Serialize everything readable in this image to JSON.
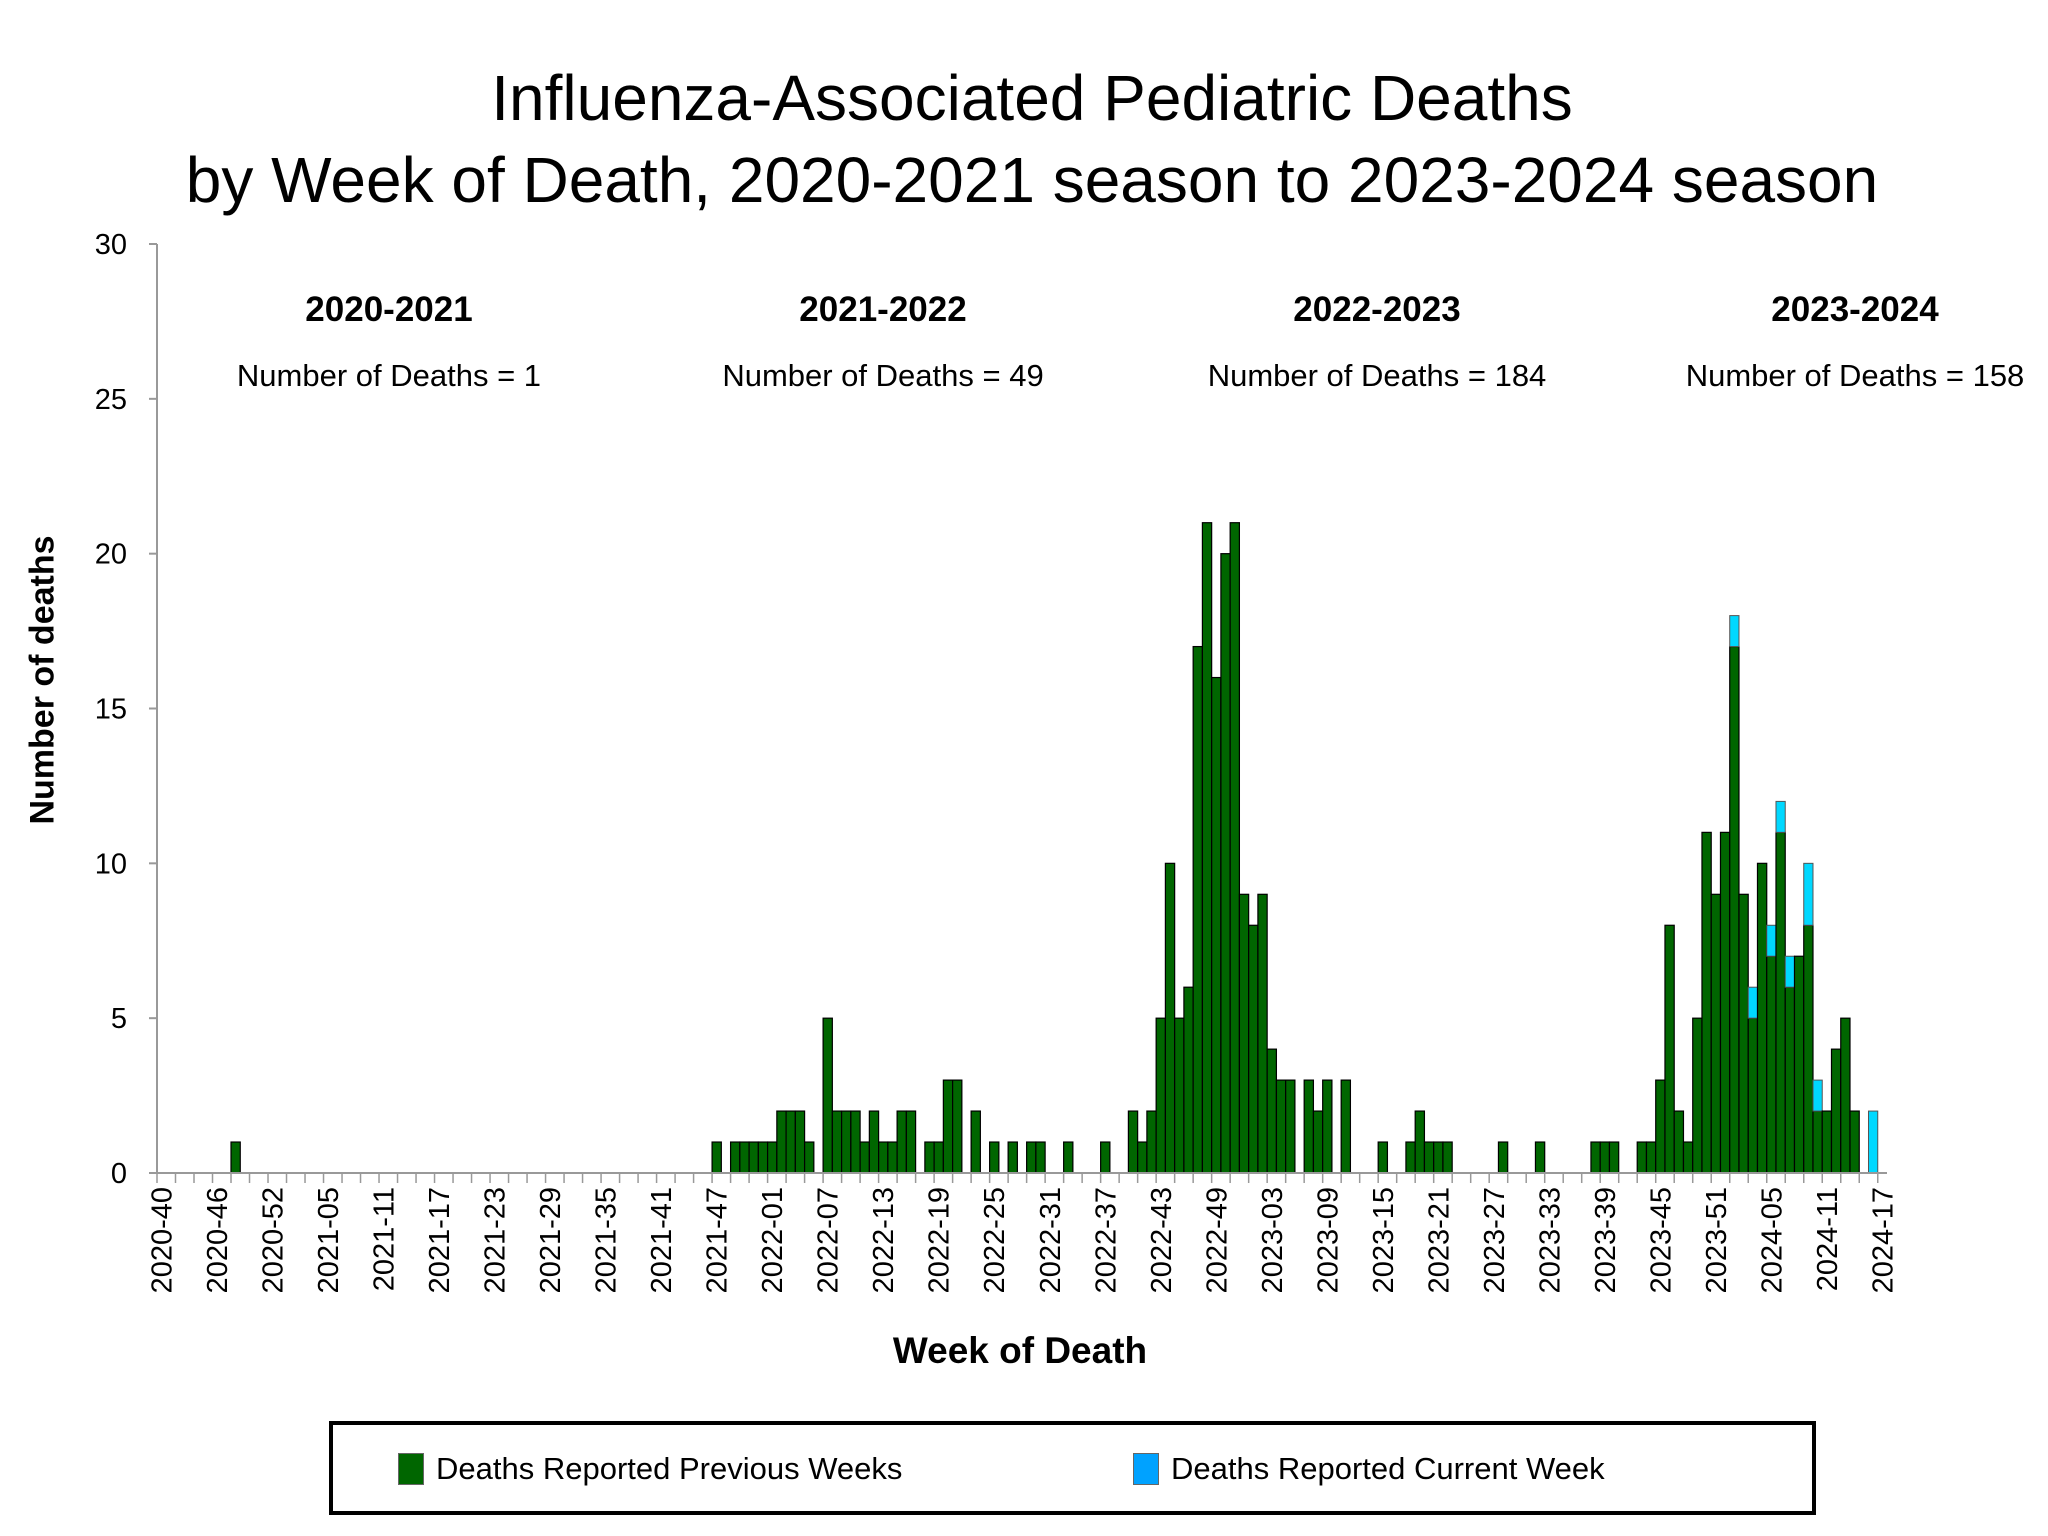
{
  "chart_data": {
    "type": "bar",
    "stacked": true,
    "title": [
      "Influenza-Associated Pediatric Deaths",
      "by Week of Death, 2020-2021 season to 2023-2024 season"
    ],
    "xlabel": "Week of Death",
    "ylabel": "Number of deaths",
    "ylim": [
      0,
      30
    ],
    "y_ticks": [
      "0",
      "5",
      "10",
      "15",
      "20",
      "25",
      "30"
    ],
    "grid": false,
    "legend_position": "bottom",
    "x_tick_labels": [
      "2020-40",
      "2020-46",
      "2020-52",
      "2021-05",
      "2021-11",
      "2021-17",
      "2021-23",
      "2021-29",
      "2021-35",
      "2021-41",
      "2021-47",
      "2022-01",
      "2022-07",
      "2022-13",
      "2022-19",
      "2022-25",
      "2022-31",
      "2022-37",
      "2022-43",
      "2022-49",
      "2023-03",
      "2023-09",
      "2023-15",
      "2023-21",
      "2023-27",
      "2023-33",
      "2023-39",
      "2023-45",
      "2023-51",
      "2024-05",
      "2024-11",
      "2024-17"
    ],
    "categories": [
      "2020-40",
      "2020-41",
      "2020-42",
      "2020-43",
      "2020-44",
      "2020-45",
      "2020-46",
      "2020-47",
      "2020-48",
      "2020-49",
      "2020-50",
      "2020-51",
      "2020-52",
      "2020-53",
      "2021-01",
      "2021-02",
      "2021-03",
      "2021-04",
      "2021-05",
      "2021-06",
      "2021-07",
      "2021-08",
      "2021-09",
      "2021-10",
      "2021-11",
      "2021-12",
      "2021-13",
      "2021-14",
      "2021-15",
      "2021-16",
      "2021-17",
      "2021-18",
      "2021-19",
      "2021-20",
      "2021-21",
      "2021-22",
      "2021-23",
      "2021-24",
      "2021-25",
      "2021-26",
      "2021-27",
      "2021-28",
      "2021-29",
      "2021-30",
      "2021-31",
      "2021-32",
      "2021-33",
      "2021-34",
      "2021-35",
      "2021-36",
      "2021-37",
      "2021-38",
      "2021-39",
      "2021-40",
      "2021-41",
      "2021-42",
      "2021-43",
      "2021-44",
      "2021-45",
      "2021-46",
      "2021-47",
      "2021-48",
      "2021-49",
      "2021-50",
      "2021-51",
      "2021-52",
      "2022-01",
      "2022-02",
      "2022-03",
      "2022-04",
      "2022-05",
      "2022-06",
      "2022-07",
      "2022-08",
      "2022-09",
      "2022-10",
      "2022-11",
      "2022-12",
      "2022-13",
      "2022-14",
      "2022-15",
      "2022-16",
      "2022-17",
      "2022-18",
      "2022-19",
      "2022-20",
      "2022-21",
      "2022-22",
      "2022-23",
      "2022-24",
      "2022-25",
      "2022-26",
      "2022-27",
      "2022-28",
      "2022-29",
      "2022-30",
      "2022-31",
      "2022-32",
      "2022-33",
      "2022-34",
      "2022-35",
      "2022-36",
      "2022-37",
      "2022-38",
      "2022-39",
      "2022-40",
      "2022-41",
      "2022-42",
      "2022-43",
      "2022-44",
      "2022-45",
      "2022-46",
      "2022-47",
      "2022-48",
      "2022-49",
      "2022-50",
      "2022-51",
      "2022-52",
      "2023-01",
      "2023-02",
      "2023-03",
      "2023-04",
      "2023-05",
      "2023-06",
      "2023-07",
      "2023-08",
      "2023-09",
      "2023-10",
      "2023-11",
      "2023-12",
      "2023-13",
      "2023-14",
      "2023-15",
      "2023-16",
      "2023-17",
      "2023-18",
      "2023-19",
      "2023-20",
      "2023-21",
      "2023-22",
      "2023-23",
      "2023-24",
      "2023-25",
      "2023-26",
      "2023-27",
      "2023-28",
      "2023-29",
      "2023-30",
      "2023-31",
      "2023-32",
      "2023-33",
      "2023-34",
      "2023-35",
      "2023-36",
      "2023-37",
      "2023-38",
      "2023-39",
      "2023-40",
      "2023-41",
      "2023-42",
      "2023-43",
      "2023-44",
      "2023-45",
      "2023-46",
      "2023-47",
      "2023-48",
      "2023-49",
      "2023-50",
      "2023-51",
      "2023-52",
      "2024-01",
      "2024-02",
      "2024-03",
      "2024-04",
      "2024-05",
      "2024-06",
      "2024-07",
      "2024-08",
      "2024-09",
      "2024-10",
      "2024-11",
      "2024-12",
      "2024-13",
      "2024-14",
      "2024-15",
      "2024-16",
      "2024-17"
    ],
    "series": [
      {
        "name": "Deaths Reported Previous Weeks",
        "color": "#006600",
        "values": [
          0,
          0,
          0,
          0,
          0,
          0,
          0,
          0,
          1,
          0,
          0,
          0,
          0,
          0,
          0,
          0,
          0,
          0,
          0,
          0,
          0,
          0,
          0,
          0,
          0,
          0,
          0,
          0,
          0,
          0,
          0,
          0,
          0,
          0,
          0,
          0,
          0,
          0,
          0,
          0,
          0,
          0,
          0,
          0,
          0,
          0,
          0,
          0,
          0,
          0,
          0,
          0,
          0,
          0,
          0,
          0,
          0,
          0,
          0,
          0,
          1,
          0,
          1,
          1,
          1,
          1,
          1,
          2,
          2,
          2,
          1,
          0,
          5,
          2,
          2,
          2,
          1,
          2,
          1,
          1,
          2,
          2,
          0,
          1,
          1,
          3,
          3,
          0,
          2,
          0,
          1,
          0,
          1,
          0,
          1,
          1,
          0,
          0,
          1,
          0,
          0,
          0,
          1,
          0,
          0,
          2,
          1,
          2,
          5,
          10,
          5,
          6,
          17,
          21,
          16,
          20,
          21,
          9,
          8,
          9,
          4,
          3,
          3,
          0,
          3,
          2,
          3,
          0,
          3,
          0,
          0,
          0,
          1,
          0,
          0,
          1,
          2,
          1,
          1,
          1,
          0,
          0,
          0,
          0,
          0,
          1,
          0,
          0,
          0,
          1,
          0,
          0,
          0,
          0,
          0,
          1,
          1,
          1,
          0,
          0,
          1,
          1,
          3,
          8,
          2,
          1,
          5,
          11,
          9,
          11,
          17,
          9,
          5,
          10,
          7,
          11,
          6,
          7,
          8,
          2,
          2,
          4,
          5,
          2,
          0,
          0,
          0
        ]
      },
      {
        "name": "Deaths Reported Current Week",
        "color": "#00D8FF",
        "legend_color": "#00A2FF",
        "values": [
          0,
          0,
          0,
          0,
          0,
          0,
          0,
          0,
          0,
          0,
          0,
          0,
          0,
          0,
          0,
          0,
          0,
          0,
          0,
          0,
          0,
          0,
          0,
          0,
          0,
          0,
          0,
          0,
          0,
          0,
          0,
          0,
          0,
          0,
          0,
          0,
          0,
          0,
          0,
          0,
          0,
          0,
          0,
          0,
          0,
          0,
          0,
          0,
          0,
          0,
          0,
          0,
          0,
          0,
          0,
          0,
          0,
          0,
          0,
          0,
          0,
          0,
          0,
          0,
          0,
          0,
          0,
          0,
          0,
          0,
          0,
          0,
          0,
          0,
          0,
          0,
          0,
          0,
          0,
          0,
          0,
          0,
          0,
          0,
          0,
          0,
          0,
          0,
          0,
          0,
          0,
          0,
          0,
          0,
          0,
          0,
          0,
          0,
          0,
          0,
          0,
          0,
          0,
          0,
          0,
          0,
          0,
          0,
          0,
          0,
          0,
          0,
          0,
          0,
          0,
          0,
          0,
          0,
          0,
          0,
          0,
          0,
          0,
          0,
          0,
          0,
          0,
          0,
          0,
          0,
          0,
          0,
          0,
          0,
          0,
          0,
          0,
          0,
          0,
          0,
          0,
          0,
          0,
          0,
          0,
          0,
          0,
          0,
          0,
          0,
          0,
          0,
          0,
          0,
          0,
          0,
          0,
          0,
          0,
          0,
          0,
          0,
          0,
          0,
          0,
          0,
          0,
          0,
          0,
          0,
          1,
          0,
          1,
          0,
          1,
          1,
          1,
          0,
          2,
          1,
          0,
          0,
          0,
          0,
          0,
          2,
          0
        ]
      }
    ],
    "annotations": [
      {
        "season": "2020-2021",
        "text": "Number of Deaths = 1"
      },
      {
        "season": "2021-2022",
        "text": "Number of Deaths = 49"
      },
      {
        "season": "2022-2023",
        "text": "Number of Deaths = 184"
      },
      {
        "season": "2023-2024",
        "text": "Number of Deaths = 158"
      }
    ]
  }
}
